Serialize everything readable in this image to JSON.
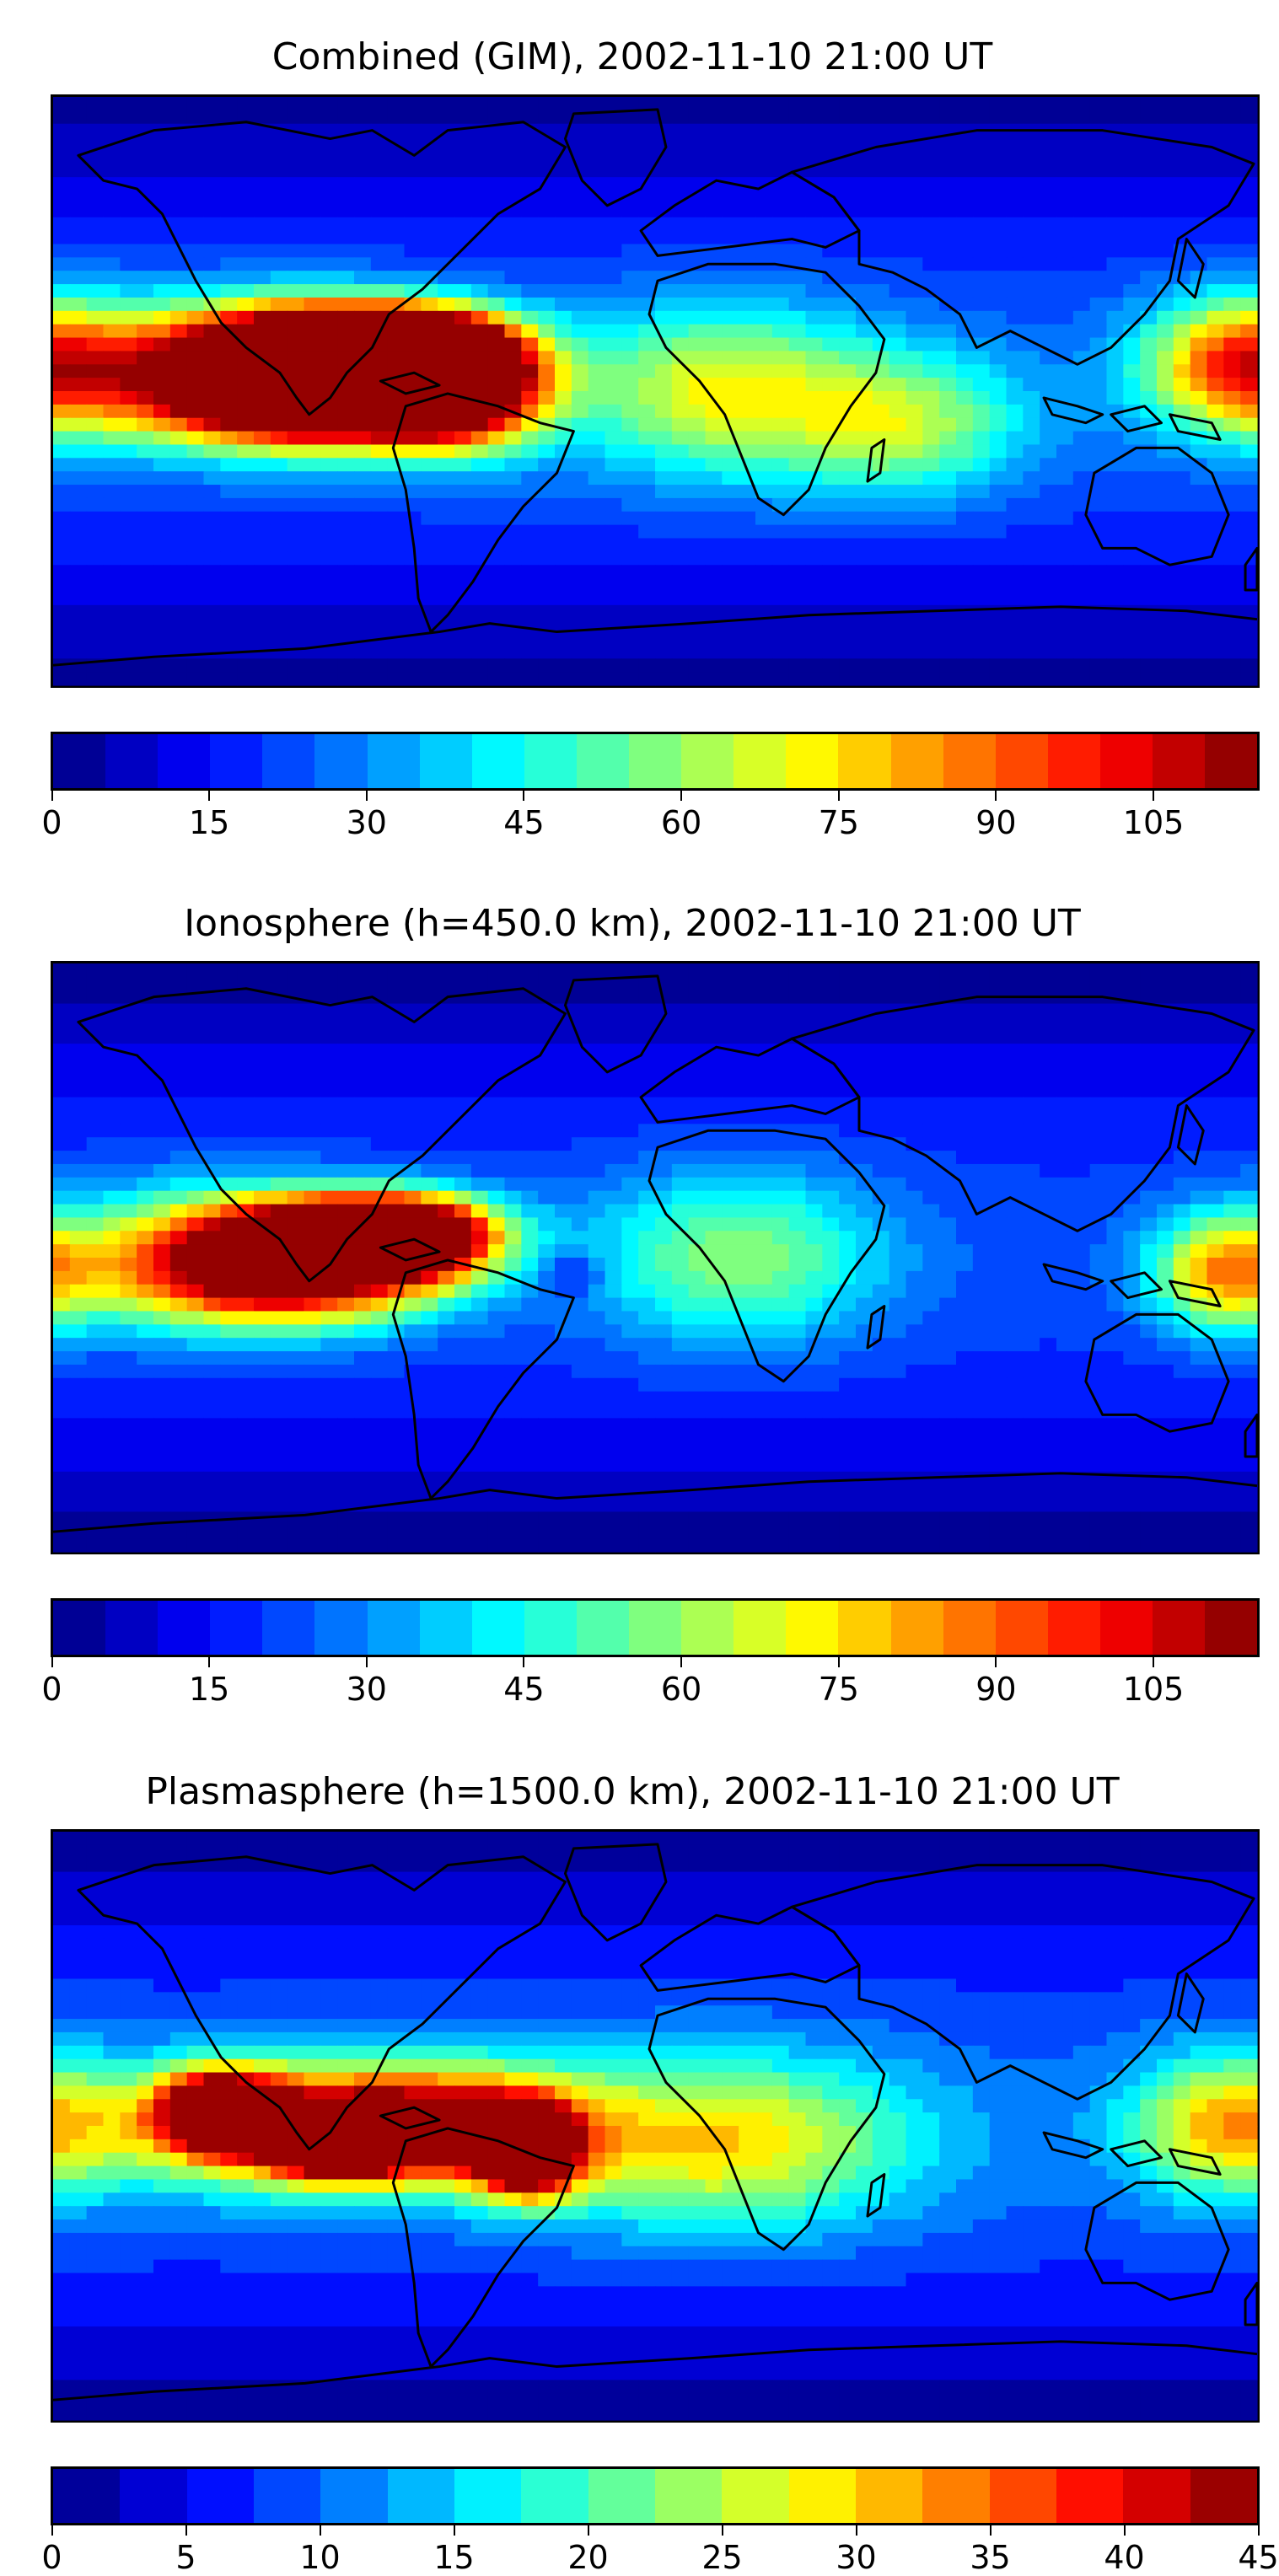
{
  "panels": [
    {
      "title": "Combined (GIM), 2002-11-10 21:00 UT",
      "colorbar": {
        "min": 0,
        "max": 115,
        "step": 5,
        "tick_labels": [
          "0",
          "15",
          "30",
          "45",
          "60",
          "75",
          "90",
          "105"
        ],
        "tick_values": [
          0,
          15,
          30,
          45,
          60,
          75,
          90,
          105
        ]
      },
      "field_blobs": [
        {
          "lon": -95,
          "lat": 13,
          "value": 108,
          "sx": 28,
          "sy": 9
        },
        {
          "lon": -70,
          "lat": 10,
          "value": 104,
          "sx": 18,
          "sy": 8
        },
        {
          "lon": -100,
          "lat": -3,
          "value": 98,
          "sx": 28,
          "sy": 9
        },
        {
          "lon": -60,
          "lat": 0,
          "value": 92,
          "sx": 18,
          "sy": 12
        },
        {
          "lon": -120,
          "lat": 5,
          "value": 80,
          "sx": 40,
          "sy": 14
        },
        {
          "lon": 175,
          "lat": 8,
          "value": 62,
          "sx": 20,
          "sy": 14
        },
        {
          "lon": 20,
          "lat": 0,
          "value": 46,
          "sx": 30,
          "sy": 18
        },
        {
          "lon": 75,
          "lat": -10,
          "value": 38,
          "sx": 25,
          "sy": 15
        }
      ],
      "field_base": 22
    },
    {
      "title": "Ionosphere  (h=450.0 km), 2002-11-10 21:00 UT",
      "colorbar": {
        "min": 0,
        "max": 115,
        "step": 5,
        "tick_labels": [
          "0",
          "15",
          "30",
          "45",
          "60",
          "75",
          "90",
          "105"
        ],
        "tick_values": [
          0,
          15,
          30,
          45,
          60,
          75,
          90,
          105
        ]
      },
      "field_blobs": [
        {
          "lon": -90,
          "lat": 10,
          "value": 85,
          "sx": 25,
          "sy": 7
        },
        {
          "lon": -70,
          "lat": 5,
          "value": 80,
          "sx": 16,
          "sy": 8
        },
        {
          "lon": -105,
          "lat": -5,
          "value": 72,
          "sx": 30,
          "sy": 10
        },
        {
          "lon": -130,
          "lat": 0,
          "value": 62,
          "sx": 35,
          "sy": 14
        },
        {
          "lon": 170,
          "lat": -5,
          "value": 52,
          "sx": 15,
          "sy": 12
        },
        {
          "lon": -25,
          "lat": -5,
          "value": -15,
          "sx": 6,
          "sy": 5
        },
        {
          "lon": 25,
          "lat": 0,
          "value": 38,
          "sx": 30,
          "sy": 18
        }
      ],
      "field_base": 20
    },
    {
      "title": "Plasmasphere (h=1500.0 km), 2002-11-10 21:00 UT",
      "colorbar": {
        "min": 0,
        "max": 45,
        "step": 2.5,
        "tick_labels": [
          "0",
          "5",
          "10",
          "15",
          "20",
          "25",
          "30",
          "35",
          "40",
          "45"
        ],
        "tick_values": [
          0,
          5,
          10,
          15,
          20,
          25,
          30,
          35,
          40,
          45
        ]
      },
      "field_blobs": [
        {
          "lon": -130,
          "lat": 5,
          "value": 38,
          "sx": 12,
          "sy": 8
        },
        {
          "lon": -95,
          "lat": -5,
          "value": 34,
          "sx": 14,
          "sy": 7
        },
        {
          "lon": -38,
          "lat": -8,
          "value": 41,
          "sx": 10,
          "sy": 9
        },
        {
          "lon": -110,
          "lat": 0,
          "value": 28,
          "sx": 40,
          "sy": 13
        },
        {
          "lon": -60,
          "lat": 0,
          "value": 27,
          "sx": 28,
          "sy": 12
        },
        {
          "lon": 20,
          "lat": -5,
          "value": 20,
          "sx": 40,
          "sy": 18
        },
        {
          "lon": 170,
          "lat": 0,
          "value": 19,
          "sx": 20,
          "sy": 15
        }
      ],
      "field_base": 9
    }
  ],
  "colors": {
    "jet_stops": [
      "#00007f",
      "#0000ff",
      "#007fff",
      "#00ffff",
      "#7fff7f",
      "#ffff00",
      "#ff7f00",
      "#ff0000",
      "#7f0000"
    ],
    "coastline": "#000000"
  }
}
